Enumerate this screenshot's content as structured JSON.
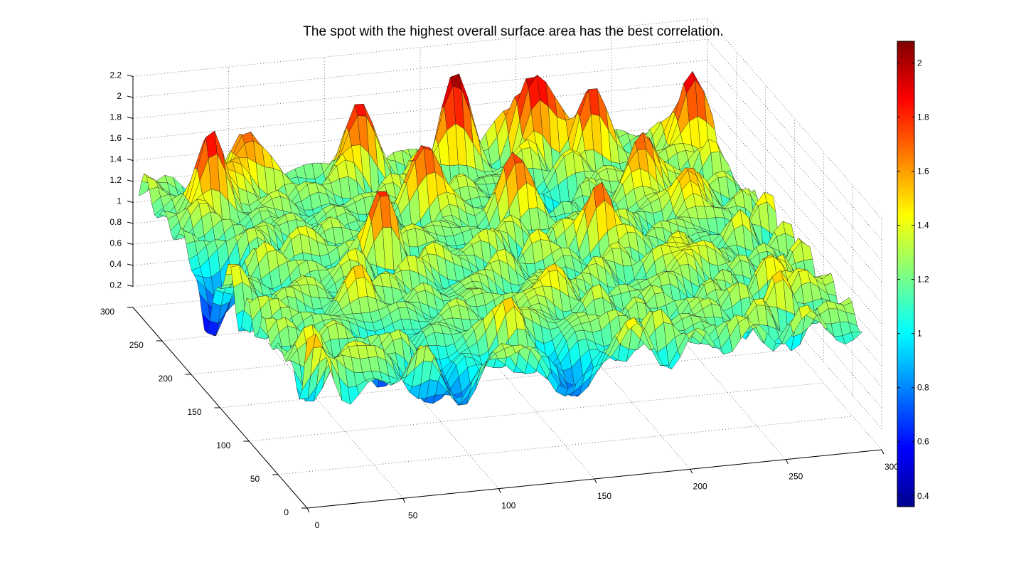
{
  "chart_data": {
    "type": "surface",
    "title": "The spot with the highest overall surface area has the best correlation.",
    "xlabel": "",
    "ylabel": "",
    "zlabel": "",
    "x_range": [
      0,
      300
    ],
    "y_range": [
      0,
      300
    ],
    "z_range": [
      0.2,
      2.2
    ],
    "x_ticks": [
      0,
      50,
      100,
      150,
      200,
      250,
      300
    ],
    "y_ticks": [
      0,
      50,
      100,
      150,
      200,
      250,
      300
    ],
    "z_ticks": [
      0.2,
      0.4,
      0.6,
      0.8,
      1,
      1.2,
      1.4,
      1.6,
      1.8,
      2,
      2.2
    ],
    "colorbar": {
      "colormap": "jet",
      "range": [
        0.36,
        2.08
      ],
      "ticks": [
        0.4,
        0.6,
        0.8,
        1,
        1.2,
        1.4,
        1.6,
        1.8,
        2
      ]
    },
    "surface_summary": {
      "min_value": 0.36,
      "max_value": 2.08,
      "typical_value": 1.2,
      "grid": "dotted"
    },
    "peaks": [
      {
        "x": 25,
        "y": 250,
        "z": 1.95
      },
      {
        "x": 50,
        "y": 270,
        "z": 1.85
      },
      {
        "x": 110,
        "y": 275,
        "z": 1.8
      },
      {
        "x": 160,
        "y": 275,
        "z": 1.95
      },
      {
        "x": 200,
        "y": 280,
        "z": 2.05
      },
      {
        "x": 225,
        "y": 265,
        "z": 1.9
      },
      {
        "x": 130,
        "y": 220,
        "z": 1.8
      },
      {
        "x": 170,
        "y": 200,
        "z": 1.75
      },
      {
        "x": 240,
        "y": 215,
        "z": 1.85
      },
      {
        "x": 90,
        "y": 165,
        "z": 1.6
      },
      {
        "x": 200,
        "y": 150,
        "z": 1.7
      },
      {
        "x": 255,
        "y": 185,
        "z": 1.7
      },
      {
        "x": 280,
        "y": 260,
        "z": 2.0
      },
      {
        "x": 60,
        "y": 100,
        "z": 1.5
      },
      {
        "x": 150,
        "y": 80,
        "z": 1.55
      },
      {
        "x": 230,
        "y": 110,
        "z": 1.6
      },
      {
        "x": 120,
        "y": 40,
        "z": 1.45
      },
      {
        "x": 270,
        "y": 60,
        "z": 1.5
      }
    ],
    "valleys": [
      {
        "x": 5,
        "y": 180,
        "z": 0.4
      },
      {
        "x": 80,
        "y": 20,
        "z": 0.55
      },
      {
        "x": 140,
        "y": 15,
        "z": 0.6
      },
      {
        "x": 190,
        "y": 220,
        "z": 0.7
      },
      {
        "x": 60,
        "y": 60,
        "z": 0.7
      }
    ]
  }
}
